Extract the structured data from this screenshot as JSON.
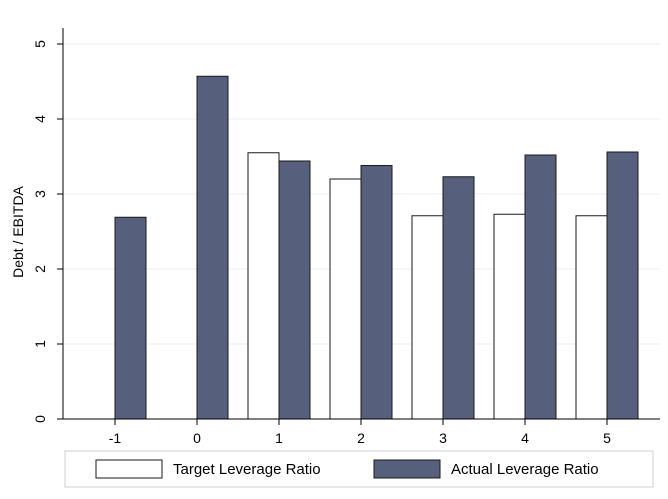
{
  "chart_data": {
    "type": "bar",
    "categories": [
      "-1",
      "0",
      "1",
      "2",
      "3",
      "4",
      "5"
    ],
    "series": [
      {
        "name": "Target Leverage Ratio",
        "values": [
          null,
          null,
          3.55,
          3.2,
          2.71,
          2.73,
          2.71
        ],
        "color": "#ffffff",
        "stroke": "#1a1a1a"
      },
      {
        "name": "Actual Leverage Ratio",
        "values": [
          2.69,
          4.57,
          3.44,
          3.38,
          3.23,
          3.52,
          3.56
        ],
        "color": "#56607c",
        "stroke": "#1a1a1a"
      }
    ],
    "title": "",
    "xlabel": "",
    "ylabel": "Debt / EBITDA",
    "ylim": [
      0,
      5
    ],
    "yticks": [
      "0",
      "1",
      "2",
      "3",
      "4",
      "5"
    ],
    "grid": true,
    "legend": "bottom"
  }
}
